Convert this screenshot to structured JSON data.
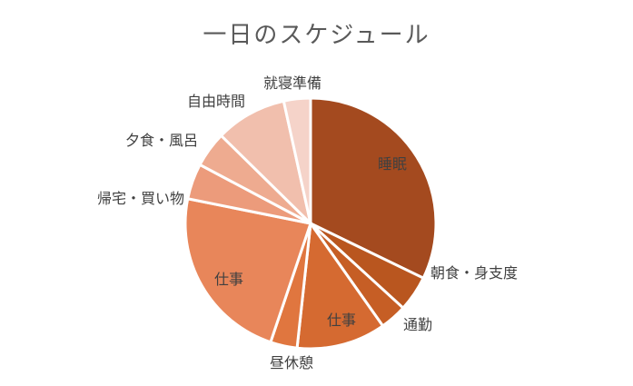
{
  "chart_data": {
    "type": "pie",
    "title": "一日のスケジュール",
    "unit": "hours",
    "slices": [
      {
        "label": "睡眠",
        "value": 7.0,
        "color": "#a44a1f"
      },
      {
        "label": "朝食・身支度",
        "value": 1.0,
        "color": "#b9561f"
      },
      {
        "label": "通勤",
        "value": 0.75,
        "color": "#c65e25"
      },
      {
        "label": "仕事",
        "value": 2.5,
        "color": "#d56a31"
      },
      {
        "label": "昼休憩",
        "value": 0.75,
        "color": "#e0763f"
      },
      {
        "label": "仕事",
        "value": 5.0,
        "color": "#e8865a"
      },
      {
        "label": "帰宅・買い物",
        "value": 1.0,
        "color": "#ec9b7b"
      },
      {
        "label": "夕食・風呂",
        "value": 1.0,
        "color": "#eeab90"
      },
      {
        "label": "自由時間",
        "value": 2.0,
        "color": "#f1bfad"
      },
      {
        "label": "就寝準備",
        "value": 0.75,
        "color": "#f5d3c9"
      }
    ]
  }
}
